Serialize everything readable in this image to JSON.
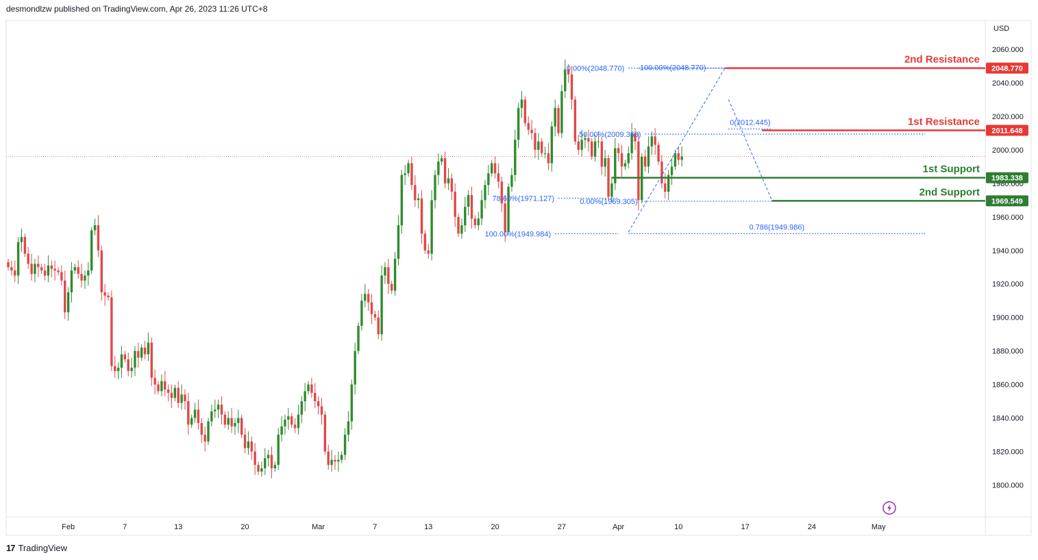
{
  "header": {
    "published_by": "desmondlzw published on TradingView.com, Apr 26, 2023 11:26 UTC+8"
  },
  "footer": {
    "logo_mark": "17",
    "brand": "TradingView"
  },
  "colors": {
    "up": "#2e8b2e",
    "down": "#e04848",
    "resistance": "#e53935",
    "support": "#2e7d32",
    "fib": "#2962ff",
    "axis_text": "#131722",
    "current_price_line": "#e57373"
  },
  "icons": {
    "lightning": "lightning-bolt-icon"
  },
  "chart_data": {
    "type": "candlestick",
    "currency": "USD",
    "y_axis": {
      "range": [
        1785,
        2075
      ],
      "ticks": [
        "2060.000",
        "2040.000",
        "2020.000",
        "2000.000",
        "1980.000",
        "1960.000",
        "1940.000",
        "1920.000",
        "1900.000",
        "1880.000",
        "1860.000",
        "1840.000",
        "1820.000",
        "1800.000"
      ]
    },
    "x_axis": {
      "labels": [
        {
          "label": "Feb",
          "bar": 18
        },
        {
          "label": "7",
          "bar": 35
        },
        {
          "label": "13",
          "bar": 51
        },
        {
          "label": "20",
          "bar": 71
        },
        {
          "label": "Mar",
          "bar": 93
        },
        {
          "label": "7",
          "bar": 110
        },
        {
          "label": "13",
          "bar": 126
        },
        {
          "label": "20",
          "bar": 146
        },
        {
          "label": "27",
          "bar": 166
        },
        {
          "label": "Apr",
          "bar": 183
        },
        {
          "label": "10",
          "bar": 201
        },
        {
          "label": "17",
          "bar": 221
        },
        {
          "label": "24",
          "bar": 241
        },
        {
          "label": "May",
          "bar": 261
        }
      ]
    },
    "current_price": 1996,
    "key_levels": [
      {
        "name": "2nd Resistance",
        "value": 2048.77,
        "label": "2048.770",
        "kind": "resistance",
        "from_bar": 215
      },
      {
        "name": "1st Resistance",
        "value": 2011.648,
        "label": "2011.648",
        "kind": "resistance",
        "from_bar": 226
      },
      {
        "name": "1st Support",
        "value": 1983.338,
        "label": "1983.338",
        "kind": "support",
        "from_bar": 181
      },
      {
        "name": "2nd Support",
        "value": 1969.549,
        "label": "1969.549",
        "kind": "support",
        "from_bar": 229
      }
    ],
    "fib_levels": [
      {
        "text": "0.00%(2048.770)",
        "value": 2048.77,
        "from_bar": 186,
        "to_bar": 215,
        "text_side": "left"
      },
      {
        "text": "100.00%(2048.770)",
        "value": 2048.77,
        "from_bar": 189,
        "to_bar": 215,
        "text_side": "right-of-start"
      },
      {
        "text": "0(2012.445)",
        "value": 2012.445,
        "from_bar": 216,
        "to_bar": 229,
        "text_side": "above"
      },
      {
        "text": "50.00%(2009.363)",
        "value": 2009.363,
        "from_bar": 191,
        "to_bar": 275,
        "text_side": "left"
      },
      {
        "text": "78.60%(1971.127)",
        "value": 1971.127,
        "from_bar": 165,
        "to_bar": 183,
        "text_side": "left"
      },
      {
        "text": "0.00%(1969.305)",
        "value": 1969.305,
        "from_bar": 190,
        "to_bar": 229,
        "text_side": "left"
      },
      {
        "text": "100.00%(1949.984)",
        "value": 1949.984,
        "from_bar": 164,
        "to_bar": 183,
        "text_side": "left"
      },
      {
        "text": "0.786(1949.986)",
        "value": 1949.986,
        "from_bar": 186,
        "to_bar": 275,
        "text_side": "above"
      }
    ],
    "fib_swings": [
      {
        "from": [
          186,
          1951
        ],
        "to": [
          215,
          2049
        ]
      },
      {
        "from": [
          216,
          2030
        ],
        "to": [
          229,
          1970
        ]
      }
    ],
    "closes": [
      1930,
      1928,
      1925,
      1945,
      1948,
      1938,
      1932,
      1926,
      1932,
      1930,
      1928,
      1925,
      1931,
      1929,
      1928,
      1927,
      1922,
      1903,
      1915,
      1928,
      1930,
      1926,
      1922,
      1925,
      1928,
      1952,
      1955,
      1940,
      1915,
      1913,
      1912,
      1871,
      1868,
      1870,
      1878,
      1875,
      1868,
      1870,
      1880,
      1876,
      1882,
      1878,
      1885,
      1864,
      1860,
      1856,
      1862,
      1857,
      1855,
      1852,
      1858,
      1849,
      1854,
      1850,
      1836,
      1840,
      1845,
      1837,
      1830,
      1826,
      1838,
      1844,
      1845,
      1848,
      1842,
      1836,
      1840,
      1835,
      1837,
      1840,
      1830,
      1822,
      1826,
      1820,
      1812,
      1808,
      1810,
      1816,
      1818,
      1810,
      1812,
      1830,
      1835,
      1839,
      1841,
      1836,
      1834,
      1842,
      1850,
      1856,
      1860,
      1855,
      1850,
      1847,
      1842,
      1820,
      1812,
      1815,
      1814,
      1815,
      1818,
      1830,
      1838,
      1860,
      1880,
      1895,
      1910,
      1914,
      1909,
      1902,
      1900,
      1890,
      1925,
      1930,
      1920,
      1916,
      1935,
      1955,
      1985,
      1986,
      1992,
      1979,
      1970,
      1971,
      1950,
      1940,
      1938,
      1970,
      1985,
      1993,
      1995,
      1980,
      1983,
      1975,
      1960,
      1950,
      1955,
      1966,
      1973,
      1959,
      1955,
      1959,
      1970,
      1979,
      1986,
      1992,
      1986,
      1981,
      1968,
      1951,
      1978,
      1985,
      2006,
      2025,
      2030,
      2016,
      2012,
      2010,
      2000,
      2005,
      1998,
      1998,
      1992,
      2014,
      2025,
      2010,
      2035,
      2048,
      2045,
      2030,
      2005,
      2000,
      2006,
      2007,
      2005,
      1996,
      2005,
      2005,
      1990,
      1995,
      1972,
      1980,
      2001,
      1998,
      1990,
      1992,
      1998,
      2010,
      2005,
      1970,
      1996,
      1990,
      2002,
      2008,
      2003,
      1993,
      1980,
      1975,
      1985,
      1990,
      1998,
      1994,
      1996
    ]
  }
}
